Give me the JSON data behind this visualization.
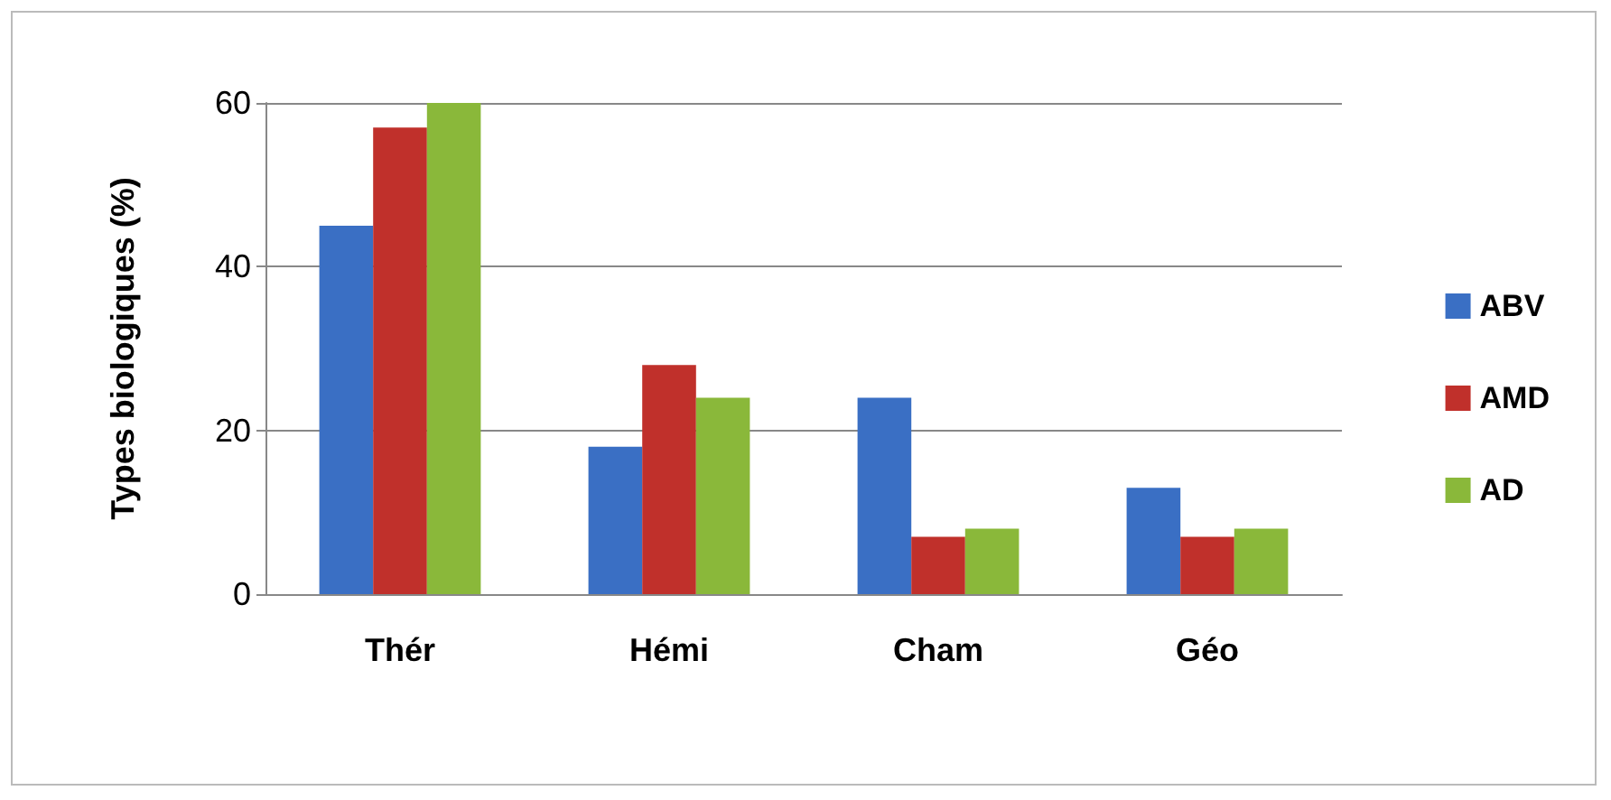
{
  "chart_data": {
    "type": "bar",
    "ylabel": "Types biologiques (%)",
    "categories": [
      "Thér",
      "Hémi",
      "Cham",
      "Géo"
    ],
    "series": [
      {
        "name": "ABV",
        "color": "#3a6fc4",
        "values": [
          45,
          18,
          24,
          13
        ]
      },
      {
        "name": "AMD",
        "color": "#c0302b",
        "values": [
          57,
          28,
          7,
          7
        ]
      },
      {
        "name": "AD",
        "color": "#8ab83a",
        "values": [
          60,
          24,
          8,
          8
        ]
      }
    ],
    "ylim": [
      0,
      60
    ],
    "yticks": [
      0,
      20,
      40,
      60
    ],
    "grid": "y",
    "legend": "right"
  }
}
